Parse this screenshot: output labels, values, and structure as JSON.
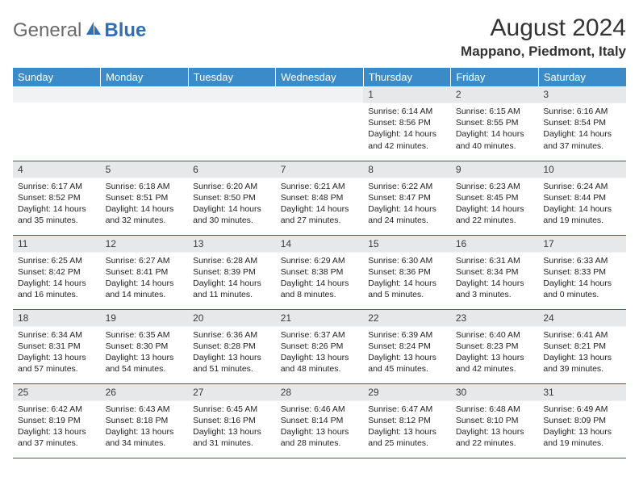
{
  "brand": {
    "text1": "General",
    "text2": "Blue"
  },
  "colors": {
    "header_blue": "#3b8bc9",
    "row_divider": "#2f5f86",
    "daynum_bg": "#e7e8ea",
    "logo_gray": "#6a6a6a",
    "logo_blue": "#2f6fb3"
  },
  "title": "August 2024",
  "location": "Mappano, Piedmont, Italy",
  "day_names": [
    "Sunday",
    "Monday",
    "Tuesday",
    "Wednesday",
    "Thursday",
    "Friday",
    "Saturday"
  ],
  "weeks": [
    [
      null,
      null,
      null,
      null,
      {
        "d": "1",
        "sr": "6:14 AM",
        "ss": "8:56 PM",
        "dl": "14 hours and 42 minutes."
      },
      {
        "d": "2",
        "sr": "6:15 AM",
        "ss": "8:55 PM",
        "dl": "14 hours and 40 minutes."
      },
      {
        "d": "3",
        "sr": "6:16 AM",
        "ss": "8:54 PM",
        "dl": "14 hours and 37 minutes."
      }
    ],
    [
      {
        "d": "4",
        "sr": "6:17 AM",
        "ss": "8:52 PM",
        "dl": "14 hours and 35 minutes."
      },
      {
        "d": "5",
        "sr": "6:18 AM",
        "ss": "8:51 PM",
        "dl": "14 hours and 32 minutes."
      },
      {
        "d": "6",
        "sr": "6:20 AM",
        "ss": "8:50 PM",
        "dl": "14 hours and 30 minutes."
      },
      {
        "d": "7",
        "sr": "6:21 AM",
        "ss": "8:48 PM",
        "dl": "14 hours and 27 minutes."
      },
      {
        "d": "8",
        "sr": "6:22 AM",
        "ss": "8:47 PM",
        "dl": "14 hours and 24 minutes."
      },
      {
        "d": "9",
        "sr": "6:23 AM",
        "ss": "8:45 PM",
        "dl": "14 hours and 22 minutes."
      },
      {
        "d": "10",
        "sr": "6:24 AM",
        "ss": "8:44 PM",
        "dl": "14 hours and 19 minutes."
      }
    ],
    [
      {
        "d": "11",
        "sr": "6:25 AM",
        "ss": "8:42 PM",
        "dl": "14 hours and 16 minutes."
      },
      {
        "d": "12",
        "sr": "6:27 AM",
        "ss": "8:41 PM",
        "dl": "14 hours and 14 minutes."
      },
      {
        "d": "13",
        "sr": "6:28 AM",
        "ss": "8:39 PM",
        "dl": "14 hours and 11 minutes."
      },
      {
        "d": "14",
        "sr": "6:29 AM",
        "ss": "8:38 PM",
        "dl": "14 hours and 8 minutes."
      },
      {
        "d": "15",
        "sr": "6:30 AM",
        "ss": "8:36 PM",
        "dl": "14 hours and 5 minutes."
      },
      {
        "d": "16",
        "sr": "6:31 AM",
        "ss": "8:34 PM",
        "dl": "14 hours and 3 minutes."
      },
      {
        "d": "17",
        "sr": "6:33 AM",
        "ss": "8:33 PM",
        "dl": "14 hours and 0 minutes."
      }
    ],
    [
      {
        "d": "18",
        "sr": "6:34 AM",
        "ss": "8:31 PM",
        "dl": "13 hours and 57 minutes."
      },
      {
        "d": "19",
        "sr": "6:35 AM",
        "ss": "8:30 PM",
        "dl": "13 hours and 54 minutes."
      },
      {
        "d": "20",
        "sr": "6:36 AM",
        "ss": "8:28 PM",
        "dl": "13 hours and 51 minutes."
      },
      {
        "d": "21",
        "sr": "6:37 AM",
        "ss": "8:26 PM",
        "dl": "13 hours and 48 minutes."
      },
      {
        "d": "22",
        "sr": "6:39 AM",
        "ss": "8:24 PM",
        "dl": "13 hours and 45 minutes."
      },
      {
        "d": "23",
        "sr": "6:40 AM",
        "ss": "8:23 PM",
        "dl": "13 hours and 42 minutes."
      },
      {
        "d": "24",
        "sr": "6:41 AM",
        "ss": "8:21 PM",
        "dl": "13 hours and 39 minutes."
      }
    ],
    [
      {
        "d": "25",
        "sr": "6:42 AM",
        "ss": "8:19 PM",
        "dl": "13 hours and 37 minutes."
      },
      {
        "d": "26",
        "sr": "6:43 AM",
        "ss": "8:18 PM",
        "dl": "13 hours and 34 minutes."
      },
      {
        "d": "27",
        "sr": "6:45 AM",
        "ss": "8:16 PM",
        "dl": "13 hours and 31 minutes."
      },
      {
        "d": "28",
        "sr": "6:46 AM",
        "ss": "8:14 PM",
        "dl": "13 hours and 28 minutes."
      },
      {
        "d": "29",
        "sr": "6:47 AM",
        "ss": "8:12 PM",
        "dl": "13 hours and 25 minutes."
      },
      {
        "d": "30",
        "sr": "6:48 AM",
        "ss": "8:10 PM",
        "dl": "13 hours and 22 minutes."
      },
      {
        "d": "31",
        "sr": "6:49 AM",
        "ss": "8:09 PM",
        "dl": "13 hours and 19 minutes."
      }
    ]
  ],
  "labels": {
    "sunrise": "Sunrise: ",
    "sunset": "Sunset: ",
    "daylight": "Daylight: "
  }
}
